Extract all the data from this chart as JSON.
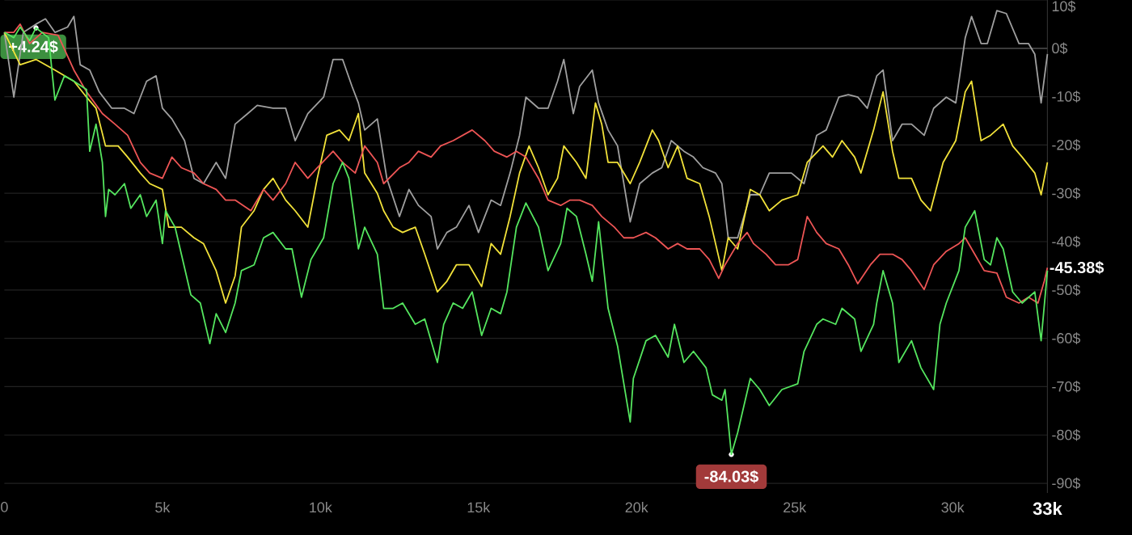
{
  "chart_data": {
    "type": "line",
    "xlim": [
      0,
      33000
    ],
    "ylim": [
      -92,
      10
    ],
    "xticks": [
      0,
      {
        "value": 5000,
        "label": "5k"
      },
      {
        "value": 10000,
        "label": "10k"
      },
      {
        "value": 15000,
        "label": "15k"
      },
      {
        "value": 20000,
        "label": "20k"
      },
      {
        "value": 25000,
        "label": "25k"
      },
      {
        "value": 30000,
        "label": "30k"
      },
      {
        "value": 33000,
        "label": "33k"
      }
    ],
    "yticks": [
      {
        "value": -90,
        "label": "-90$"
      },
      {
        "value": -80,
        "label": "-80$"
      },
      {
        "value": -70,
        "label": "-70$"
      },
      {
        "value": -60,
        "label": "-60$"
      },
      {
        "value": -50,
        "label": "-50$"
      },
      {
        "value": -40,
        "label": "-40$"
      },
      {
        "value": -30,
        "label": "-30$"
      },
      {
        "value": -20,
        "label": "-20$"
      },
      {
        "value": -10,
        "label": "-10$"
      },
      {
        "value": 0,
        "label": "0$"
      },
      {
        "value": 10,
        "label": "10$"
      }
    ],
    "grid": "y",
    "ref_lines": [
      {
        "axis": "y",
        "value": 0,
        "color": "#4a4a4a"
      }
    ],
    "annotations": [
      {
        "text": "+4.24$",
        "x": 1000,
        "y": 4.24
      },
      {
        "text": "-84.03$",
        "x": 23000,
        "y": -84.03
      },
      {
        "text": "-45.38$",
        "x": 33000,
        "y": -45.38
      }
    ],
    "series": [
      {
        "color": "#a0a0a0",
        "x": [
          0,
          300,
          600,
          1000,
          1300,
          1600,
          2000,
          2200,
          2400,
          2700,
          3000,
          3400,
          3800,
          4100,
          4500,
          4800,
          5000,
          5300,
          5700,
          6000,
          6300,
          6700,
          7000,
          7300,
          7700,
          8000,
          8500,
          8900,
          9200,
          9600,
          10100,
          10400,
          10700,
          11000,
          11200,
          11400,
          11800,
          12100,
          12500,
          12800,
          13100,
          13500,
          13700,
          14000,
          14300,
          14700,
          15000,
          15400,
          15700,
          16000,
          16300,
          16500,
          16900,
          17200,
          17500,
          17700,
          18000,
          18200,
          18600,
          18800,
          19100,
          19400,
          19800,
          20100,
          20500,
          20800,
          21100,
          21500,
          21800,
          22100,
          22500,
          22700,
          22900,
          23200,
          23600,
          23900,
          24200,
          24900,
          25300,
          25700,
          26000,
          26400,
          26700,
          27000,
          27300,
          27600,
          27800,
          28100,
          28400,
          28700,
          29100,
          29400,
          29800,
          30100,
          30400,
          30600,
          30900,
          31100,
          31400,
          31700,
          32100,
          32400,
          32600,
          32800,
          33000
        ],
        "values": [
          3.3,
          -10.1,
          3.3,
          5.0,
          6.1,
          3.3,
          4.4,
          6.6,
          -3.4,
          -4.5,
          -9.0,
          -12.4,
          -12.4,
          -13.5,
          -6.8,
          -5.7,
          -12.4,
          -14.6,
          -19.1,
          -26.9,
          -28.0,
          -23.6,
          -26.9,
          -15.7,
          -13.5,
          -11.8,
          -12.4,
          -12.4,
          -19.1,
          -13.5,
          -10.1,
          -2.3,
          -2.3,
          -7.9,
          -11.3,
          -16.9,
          -14.6,
          -26.9,
          -34.8,
          -29.2,
          -32.5,
          -34.8,
          -41.5,
          -38.1,
          -37.0,
          -32.5,
          -38.1,
          -31.4,
          -32.5,
          -25.8,
          -18.0,
          -10.1,
          -12.4,
          -12.4,
          -6.8,
          -2.3,
          -13.5,
          -7.9,
          -4.5,
          -11.3,
          -16.9,
          -20.2,
          -35.9,
          -28.0,
          -25.8,
          -24.7,
          -19.1,
          -21.3,
          -22.5,
          -24.7,
          -25.8,
          -28.0,
          -39.2,
          -39.2,
          -30.3,
          -30.3,
          -25.8,
          -25.8,
          -28.0,
          -18.0,
          -16.9,
          -10.1,
          -9.6,
          -10.1,
          -12.4,
          -5.7,
          -4.5,
          -19.1,
          -15.7,
          -15.7,
          -18.0,
          -12.4,
          -10.1,
          -11.3,
          2.2,
          6.6,
          1.0,
          1.0,
          7.8,
          7.2,
          1.0,
          1.0,
          -1.2,
          -11.3,
          -1.2
        ]
      },
      {
        "color": "#f2e23a",
        "x": [
          0,
          500,
          1000,
          1600,
          2200,
          2600,
          2900,
          3200,
          3600,
          3900,
          4300,
          4600,
          5000,
          5200,
          5600,
          6000,
          6300,
          6700,
          7000,
          7300,
          7500,
          7900,
          8200,
          8500,
          8900,
          9200,
          9600,
          9900,
          10200,
          10600,
          10900,
          11200,
          11400,
          11800,
          12000,
          12300,
          12600,
          13000,
          13300,
          13700,
          14000,
          14300,
          14700,
          15100,
          15400,
          15700,
          16000,
          16300,
          16600,
          16900,
          17200,
          17500,
          17700,
          18100,
          18400,
          18700,
          18900,
          19100,
          19400,
          19800,
          20100,
          20500,
          20700,
          21000,
          21300,
          21600,
          22000,
          22300,
          22700,
          22900,
          23200,
          23600,
          23900,
          24200,
          24600,
          25100,
          25400,
          25900,
          26200,
          26500,
          26900,
          27100,
          27500,
          27800,
          28100,
          28300,
          28700,
          29000,
          29300,
          29700,
          30100,
          30400,
          30600,
          30900,
          31200,
          31600,
          31900,
          32200,
          32600,
          32800,
          33000
        ],
        "values": [
          3.3,
          -3.4,
          -2.3,
          -4.5,
          -6.8,
          -10.1,
          -12.4,
          -20.2,
          -20.2,
          -22.5,
          -25.8,
          -28.0,
          -29.2,
          -37.0,
          -37.0,
          -39.2,
          -40.4,
          -46.0,
          -52.7,
          -47.1,
          -37.0,
          -33.6,
          -29.2,
          -26.9,
          -31.4,
          -33.6,
          -37.0,
          -26.9,
          -18.0,
          -16.9,
          -19.1,
          -13.5,
          -25.8,
          -30.0,
          -33.6,
          -37.0,
          -38.1,
          -37.0,
          -42.6,
          -50.4,
          -48.2,
          -44.8,
          -44.8,
          -49.3,
          -40.4,
          -42.6,
          -34.8,
          -25.8,
          -20.2,
          -24.7,
          -30.3,
          -26.9,
          -20.2,
          -23.6,
          -26.9,
          -11.3,
          -15.7,
          -23.6,
          -23.6,
          -28.0,
          -23.6,
          -16.9,
          -19.1,
          -24.7,
          -20.2,
          -26.9,
          -28.0,
          -34.8,
          -46.0,
          -39.2,
          -41.5,
          -29.2,
          -30.3,
          -33.6,
          -31.4,
          -30.3,
          -23.6,
          -20.2,
          -22.5,
          -19.1,
          -22.5,
          -25.8,
          -16.9,
          -9.0,
          -21.3,
          -26.9,
          -26.9,
          -31.4,
          -33.6,
          -23.6,
          -19.1,
          -9.0,
          -6.8,
          -19.1,
          -18.0,
          -15.7,
          -20.2,
          -22.5,
          -25.8,
          -30.3,
          -23.6
        ]
      },
      {
        "color": "#ee5555",
        "x": [
          0,
          300,
          500,
          800,
          1200,
          1700,
          2200,
          2600,
          3100,
          3500,
          3900,
          4300,
          4600,
          5000,
          5300,
          5600,
          6000,
          6300,
          6700,
          7000,
          7300,
          7800,
          8200,
          8500,
          8900,
          9200,
          9600,
          9900,
          10400,
          10700,
          11100,
          11400,
          11800,
          12000,
          12500,
          12800,
          13100,
          13500,
          13800,
          14200,
          14500,
          14800,
          15200,
          15500,
          15900,
          16200,
          16500,
          16900,
          17200,
          17600,
          17900,
          18200,
          18600,
          18900,
          19300,
          19600,
          19900,
          20300,
          20600,
          21000,
          21300,
          21600,
          22000,
          22300,
          22600,
          22800,
          23200,
          23500,
          23700,
          24100,
          24400,
          24800,
          25100,
          25400,
          25700,
          26000,
          26400,
          26700,
          27000,
          27400,
          27700,
          28100,
          28400,
          28700,
          29100,
          29400,
          29800,
          30200,
          30400,
          30700,
          31000,
          31400,
          31700,
          32100,
          32400,
          32700,
          32900,
          33000
        ],
        "values": [
          3.3,
          3.3,
          5.0,
          1.0,
          3.3,
          2.7,
          -4.5,
          -9.0,
          -13.5,
          -15.7,
          -18.0,
          -23.6,
          -25.8,
          -26.9,
          -22.5,
          -24.7,
          -25.8,
          -28.0,
          -29.2,
          -31.4,
          -31.4,
          -33.6,
          -29.2,
          -31.4,
          -28.0,
          -23.6,
          -26.9,
          -24.7,
          -21.3,
          -23.6,
          -25.8,
          -20.2,
          -23.6,
          -28.0,
          -24.7,
          -23.6,
          -21.3,
          -22.5,
          -20.2,
          -19.1,
          -18.0,
          -16.9,
          -19.1,
          -21.3,
          -22.5,
          -21.3,
          -22.5,
          -26.9,
          -31.4,
          -32.5,
          -31.4,
          -31.4,
          -32.5,
          -34.8,
          -37.0,
          -39.2,
          -39.2,
          -38.1,
          -39.2,
          -41.5,
          -40.4,
          -41.5,
          -41.5,
          -43.7,
          -47.6,
          -44.8,
          -40.4,
          -38.1,
          -40.4,
          -42.6,
          -44.8,
          -44.8,
          -43.7,
          -34.8,
          -38.1,
          -40.4,
          -41.5,
          -44.8,
          -48.7,
          -44.8,
          -42.6,
          -42.6,
          -43.7,
          -46.0,
          -49.9,
          -44.8,
          -42.0,
          -40.4,
          -39.2,
          -42.6,
          -46.0,
          -46.5,
          -51.5,
          -52.7,
          -51.5,
          -52.7,
          -48.2,
          -45.38
        ]
      },
      {
        "color": "#55e65f",
        "x": [
          0,
          300,
          500,
          800,
          1000,
          1400,
          1600,
          1900,
          2200,
          2600,
          2700,
          2900,
          3100,
          3200,
          3300,
          3500,
          3800,
          4000,
          4300,
          4500,
          4800,
          5000,
          5100,
          5400,
          5600,
          5900,
          6200,
          6500,
          6700,
          7000,
          7300,
          7500,
          7900,
          8200,
          8500,
          8900,
          9100,
          9400,
          9700,
          10100,
          10400,
          10700,
          10900,
          11200,
          11400,
          11800,
          12000,
          12300,
          12600,
          13000,
          13300,
          13700,
          13900,
          14200,
          14500,
          14800,
          15100,
          15400,
          15700,
          15900,
          16200,
          16500,
          16900,
          17200,
          17600,
          17800,
          18100,
          18400,
          18600,
          18800,
          19100,
          19400,
          19800,
          19900,
          20300,
          20600,
          21000,
          21200,
          21500,
          21800,
          22200,
          22400,
          22700,
          22800,
          23000,
          23200,
          23600,
          23900,
          24200,
          24600,
          25100,
          25300,
          25700,
          25900,
          26300,
          26500,
          26900,
          27100,
          27500,
          27600,
          27800,
          28100,
          28300,
          28700,
          29000,
          29400,
          29600,
          29800,
          30200,
          30400,
          30700,
          31000,
          31200,
          31400,
          31600,
          31900,
          32200,
          32600,
          32800,
          33000
        ],
        "values": [
          3.3,
          2.2,
          4.4,
          1.6,
          4.24,
          2.2,
          -10.7,
          -5.7,
          -6.8,
          -8.5,
          -21.3,
          -15.7,
          -23.6,
          -34.8,
          -29.2,
          -30.3,
          -28.0,
          -33.1,
          -30.3,
          -34.8,
          -31.4,
          -40.4,
          -33.6,
          -37.0,
          -42.6,
          -51.0,
          -52.7,
          -61.1,
          -54.9,
          -58.8,
          -52.7,
          -46.0,
          -44.8,
          -39.2,
          -38.1,
          -41.5,
          -41.5,
          -51.5,
          -43.7,
          -39.2,
          -28.0,
          -23.6,
          -26.9,
          -41.5,
          -37.0,
          -42.6,
          -53.8,
          -53.8,
          -52.7,
          -57.1,
          -56.0,
          -65.0,
          -57.1,
          -52.7,
          -53.8,
          -50.4,
          -59.4,
          -53.8,
          -54.9,
          -50.4,
          -37.0,
          -32.0,
          -37.0,
          -46.0,
          -40.4,
          -33.1,
          -34.8,
          -42.6,
          -48.2,
          -35.9,
          -53.8,
          -61.6,
          -77.3,
          -68.3,
          -60.5,
          -59.4,
          -63.9,
          -57.1,
          -65.0,
          -62.7,
          -66.1,
          -71.7,
          -72.8,
          -70.6,
          -84.03,
          -79.5,
          -68.3,
          -70.6,
          -73.9,
          -70.6,
          -69.4,
          -62.7,
          -57.1,
          -56.0,
          -57.1,
          -53.8,
          -56.0,
          -62.7,
          -57.1,
          -52.7,
          -46.0,
          -52.7,
          -65.0,
          -60.5,
          -66.1,
          -70.6,
          -57.1,
          -52.7,
          -46.0,
          -37.0,
          -33.6,
          -43.7,
          -44.8,
          -39.2,
          -41.5,
          -50.4,
          -52.7,
          -50.4,
          -60.5,
          -46.0
        ]
      }
    ]
  }
}
